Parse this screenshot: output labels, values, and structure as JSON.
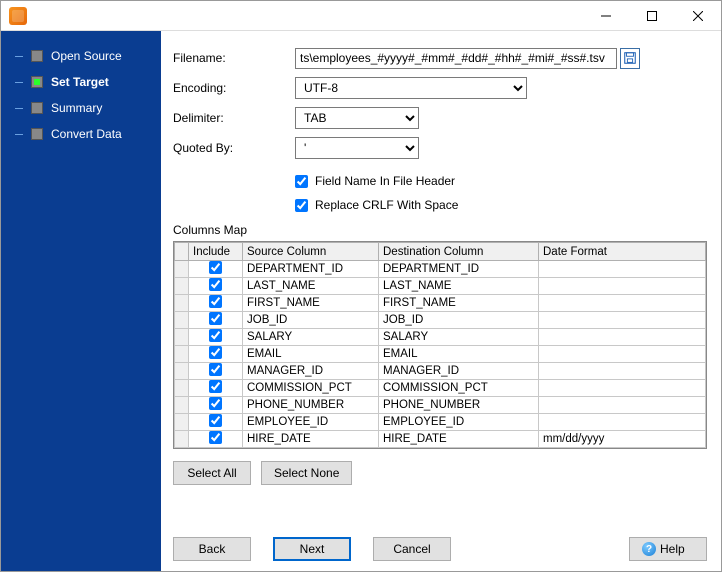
{
  "titlebar": {
    "title": ""
  },
  "sidebar": {
    "items": [
      {
        "label": "Open Source",
        "active": false
      },
      {
        "label": "Set Target",
        "active": true
      },
      {
        "label": "Summary",
        "active": false
      },
      {
        "label": "Convert Data",
        "active": false
      }
    ]
  },
  "form": {
    "filename_label": "Filename:",
    "filename_value": "ts\\employees_#yyyy#_#mm#_#dd#_#hh#_#mi#_#ss#.tsv",
    "encoding_label": "Encoding:",
    "encoding_value": "UTF-8",
    "encoding_width": 232,
    "delimiter_label": "Delimiter:",
    "delimiter_value": "TAB",
    "delimiter_width": 124,
    "quoted_label": "Quoted By:",
    "quoted_value": "'",
    "quoted_width": 124,
    "cb1_label": "Field Name In File Header",
    "cb1_checked": true,
    "cb2_label": "Replace CRLF With Space",
    "cb2_checked": true
  },
  "columns_map_label": "Columns Map",
  "grid": {
    "headers": {
      "include": "Include",
      "source": "Source Column",
      "dest": "Destination Column",
      "date": "Date Format"
    },
    "rows": [
      {
        "include": true,
        "source": "DEPARTMENT_ID",
        "dest": "DEPARTMENT_ID",
        "date": ""
      },
      {
        "include": true,
        "source": "LAST_NAME",
        "dest": "LAST_NAME",
        "date": ""
      },
      {
        "include": true,
        "source": "FIRST_NAME",
        "dest": "FIRST_NAME",
        "date": ""
      },
      {
        "include": true,
        "source": "JOB_ID",
        "dest": "JOB_ID",
        "date": ""
      },
      {
        "include": true,
        "source": "SALARY",
        "dest": "SALARY",
        "date": ""
      },
      {
        "include": true,
        "source": "EMAIL",
        "dest": "EMAIL",
        "date": ""
      },
      {
        "include": true,
        "source": "MANAGER_ID",
        "dest": "MANAGER_ID",
        "date": ""
      },
      {
        "include": true,
        "source": "COMMISSION_PCT",
        "dest": "COMMISSION_PCT",
        "date": ""
      },
      {
        "include": true,
        "source": "PHONE_NUMBER",
        "dest": "PHONE_NUMBER",
        "date": ""
      },
      {
        "include": true,
        "source": "EMPLOYEE_ID",
        "dest": "EMPLOYEE_ID",
        "date": ""
      },
      {
        "include": true,
        "source": "HIRE_DATE",
        "dest": "HIRE_DATE",
        "date": "mm/dd/yyyy"
      }
    ]
  },
  "buttons": {
    "select_all": "Select All",
    "select_none": "Select None",
    "back": "Back",
    "next": "Next",
    "cancel": "Cancel",
    "help": "Help"
  },
  "colors": {
    "sidebar_bg": "#0a3d91",
    "active_marker": "#2aff2a",
    "border": "#7a7a7a",
    "primary_border": "#0066cc"
  }
}
